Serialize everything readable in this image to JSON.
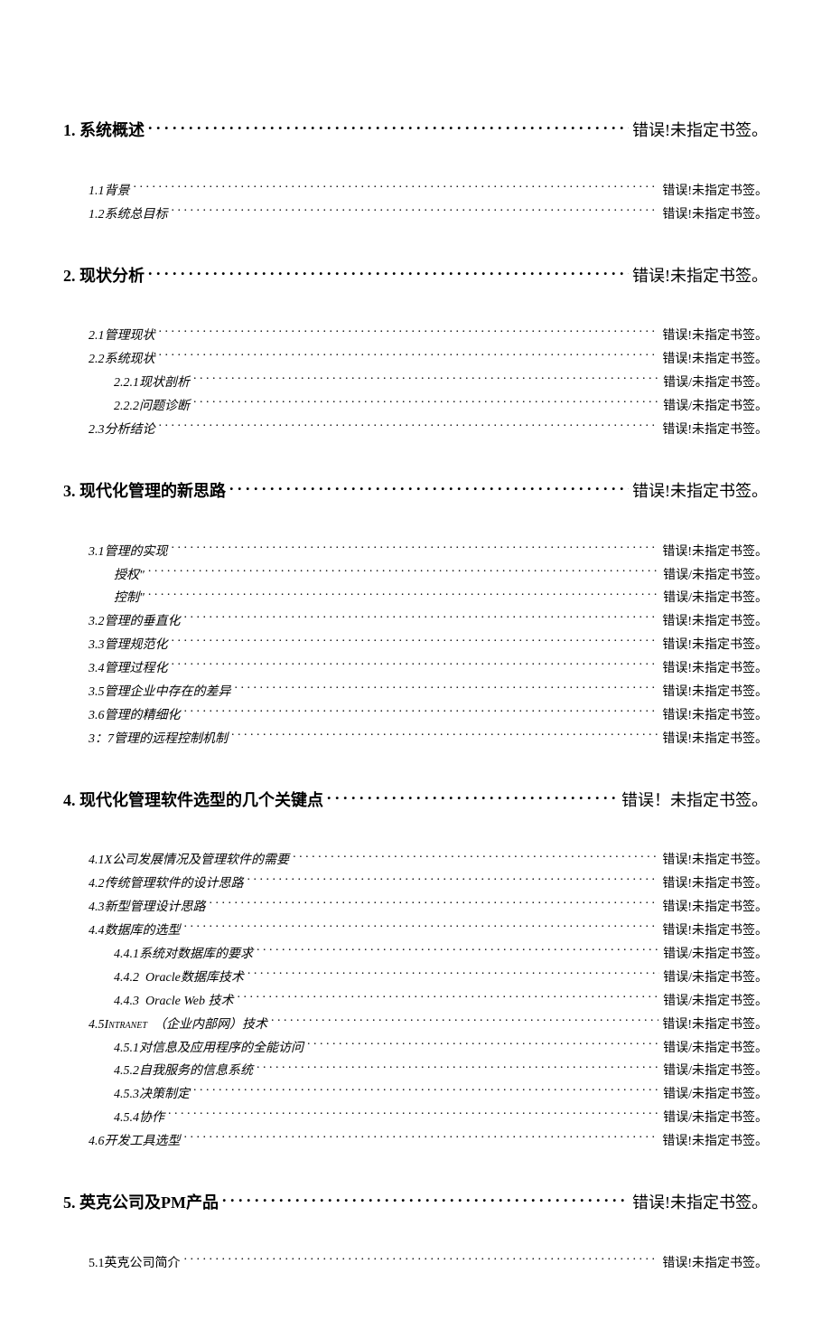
{
  "error_texts": {
    "l1": "错误!未指定书签。",
    "l1_space": "错误！未指定书签。",
    "l2": "错误!未指定书签。",
    "l3": "错误/未指定书签。"
  },
  "entries": [
    {
      "level": 1,
      "label": "1. 系统概述",
      "page_key": "l1"
    },
    {
      "level": 2,
      "label_html": "<span class='italic-num'>1.1</span>背景",
      "page_key": "l2"
    },
    {
      "level": 2,
      "label_html": "<span class='italic-num'>1.2</span>系统总目标",
      "page_key": "l2"
    },
    {
      "level": 1,
      "label": "2. 现状分析",
      "page_key": "l1"
    },
    {
      "level": 2,
      "label_html": "<span class='italic-num'>2.1</span>管理现状",
      "page_key": "l2"
    },
    {
      "level": 2,
      "label_html": "<span class='italic-num'>2.2</span>系统现状",
      "page_key": "l2"
    },
    {
      "level": 3,
      "label_html": "<span class='italic-num'>2.2.1</span>现状剖析",
      "page_key": "l3"
    },
    {
      "level": 3,
      "label_html": "<span class='italic-num'>2.2.2</span>问题诊断",
      "page_key": "l3"
    },
    {
      "level": 2,
      "label_html": "<span class='italic-num'>2.3</span>分析结论",
      "page_key": "l2"
    },
    {
      "level": 1,
      "label": "3. 现代化管理的新思路",
      "page_key": "l1"
    },
    {
      "level": 2,
      "label_html": "<span class='italic-num'>3.1</span>管理的实现",
      "page_key": "l2"
    },
    {
      "level": 3,
      "label_html": "授权\"",
      "page_key": "l3"
    },
    {
      "level": 3,
      "label_html": "控制\"",
      "page_key": "l3"
    },
    {
      "level": 2,
      "label_html": "<span class='italic-num'>3.2</span>管理的垂直化",
      "page_key": "l2"
    },
    {
      "level": 2,
      "label_html": "<span class='italic-num'>3.3</span>管理规范化",
      "page_key": "l2"
    },
    {
      "level": 2,
      "label_html": "<span class='italic-num'>3.4</span>管理过程化",
      "page_key": "l2"
    },
    {
      "level": 2,
      "label_html": "<span class='italic-num'>3.5</span>管理企业中存在的差异",
      "page_key": "l2"
    },
    {
      "level": 2,
      "label_html": "<span class='italic-num'>3.6</span>管理的精细化",
      "page_key": "l2"
    },
    {
      "level": 2,
      "label_html": "<span class='italic-num'>3</span>：<span class='italic-num'>7</span>管理的远程控制机制",
      "page_key": "l2"
    },
    {
      "level": 1,
      "label": "4. 现代化管理软件选型的几个关键点",
      "page_key": "l1_space"
    },
    {
      "level": 2,
      "label_html": "<span class='italic-num'>4.1X</span>公司发展情况及管理软件的需要",
      "page_key": "l2"
    },
    {
      "level": 2,
      "label_html": "<span class='italic-num'>4.2</span>传统管理软件的设计思路",
      "page_key": "l2"
    },
    {
      "level": 2,
      "label_html": "<span class='italic-num'>4.3</span>新型管理设计思路",
      "page_key": "l2"
    },
    {
      "level": 2,
      "label_html": "<span class='italic-num'>4.4</span>数据库的选型",
      "page_key": "l2"
    },
    {
      "level": 3,
      "label_html": "<span class='italic-num'>4.4.1</span>系统对数据库的要求",
      "page_key": "l3"
    },
    {
      "level": 3,
      "label_html": "<span class='italic-num'>4.4.2&nbsp;&nbsp;Oracle</span>数据库技术",
      "page_key": "l3"
    },
    {
      "level": 3,
      "label_html": "<span class='italic-num'>4.4.3&nbsp;&nbsp;Oracle Web</span>&nbsp;技术",
      "page_key": "l3"
    },
    {
      "level": 2,
      "label_html": "<span class='italic-num'>4.5</span><span class='smallcaps'>Intranet</span>&nbsp;&nbsp;（企业内部网）技术",
      "page_key": "l2"
    },
    {
      "level": 3,
      "label_html": "<span class='italic-num'>4.5.1</span>对信息及应用程序的全能访问",
      "page_key": "l3"
    },
    {
      "level": 3,
      "label_html": "<span class='italic-num'>4.5.2</span>自我服务的信息系统",
      "page_key": "l3"
    },
    {
      "level": 3,
      "label_html": "<span class='italic-num'>4.5.3</span>决策制定",
      "page_key": "l3"
    },
    {
      "level": 3,
      "label_html": "<span class='italic-num'>4.5.4</span>协作",
      "page_key": "l3"
    },
    {
      "level": 2,
      "label_html": "<span class='italic-num'>4.6</span>开发工具选型",
      "page_key": "l2"
    },
    {
      "level": 1,
      "label": "5. 英克公司及PM产品",
      "page_key": "l1"
    },
    {
      "level": 2,
      "noitalic": true,
      "label_html": "5.1英克公司简介",
      "page_key": "l2"
    }
  ]
}
